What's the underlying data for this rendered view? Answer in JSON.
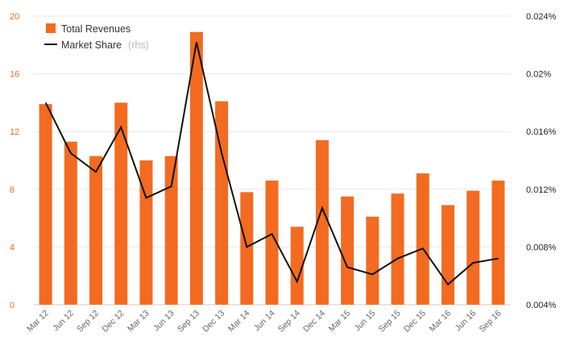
{
  "colors": {
    "bar": "#f26b21",
    "line": "#111111",
    "grid": "#e9e9e9",
    "left_axis_text": "#f26b21"
  },
  "legend": {
    "items": [
      {
        "label": "Total Revenues",
        "suffix": "",
        "icon": "orange-square-icon"
      },
      {
        "label": "Market Share",
        "suffix": "(rhs)",
        "icon": "black-line-icon"
      }
    ]
  },
  "chart_data": {
    "type": "bar",
    "categories": [
      "Mar 12",
      "Jun 12",
      "Sep 12",
      "Dec 12",
      "Mar 13",
      "Jun 13",
      "Sep 13",
      "Dec 13",
      "Mar 14",
      "Jun 14",
      "Sep 14",
      "Dec 14",
      "Mar 15",
      "Jun 15",
      "Sep 15",
      "Dec 15",
      "Mar 16",
      "Jun 16",
      "Sep 16"
    ],
    "series": [
      {
        "name": "Total Revenues",
        "type": "bar",
        "axis": "left",
        "values": [
          13.9,
          11.3,
          10.3,
          14.0,
          10.0,
          10.3,
          18.9,
          14.1,
          7.8,
          8.6,
          5.4,
          11.4,
          7.5,
          6.1,
          7.7,
          9.1,
          6.9,
          7.9,
          8.6
        ]
      },
      {
        "name": "Market Share",
        "type": "line",
        "axis": "right",
        "values": [
          0.018,
          0.0145,
          0.0132,
          0.0163,
          0.0114,
          0.0122,
          0.0222,
          0.0145,
          0.008,
          0.0089,
          0.0056,
          0.0107,
          0.0066,
          0.0061,
          0.0072,
          0.0079,
          0.0054,
          0.0069,
          0.0072
        ]
      }
    ],
    "y_left": {
      "ylim": [
        0,
        20
      ],
      "ticks": [
        0,
        4,
        8,
        12,
        16,
        20
      ],
      "tick_labels": [
        "0",
        "4",
        "8",
        "12",
        "16",
        "20"
      ]
    },
    "y_right": {
      "ylim": [
        0.004,
        0.024
      ],
      "ticks": [
        0.004,
        0.008,
        0.012,
        0.016,
        0.02,
        0.024
      ],
      "tick_labels": [
        "0.004%",
        "0.008%",
        "0.012%",
        "0.016%",
        "0.02%",
        "0.024%"
      ]
    },
    "grid": true,
    "legend_position": "top-left",
    "title": "",
    "xlabel": "",
    "ylabel": ""
  }
}
